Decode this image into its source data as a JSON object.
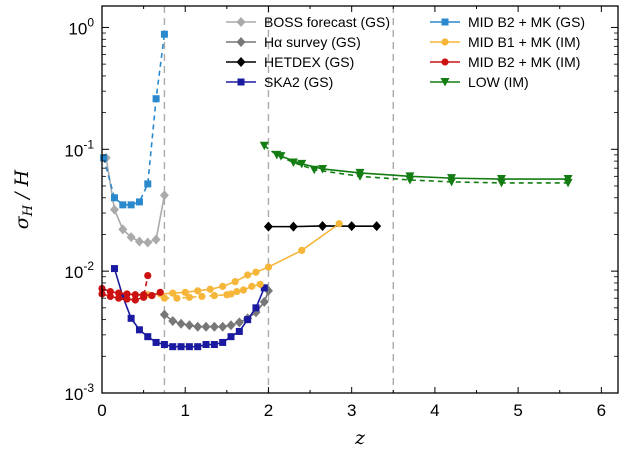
{
  "chart_data": {
    "type": "line",
    "title": "",
    "xlabel": "z",
    "ylabel": "σH / H",
    "xlim": [
      0,
      6.2
    ],
    "ylim": [
      0.001,
      1.5
    ],
    "yscale": "log",
    "x_ticks": [
      0,
      1,
      2,
      3,
      4,
      5,
      6
    ],
    "y_ticks": [
      {
        "value": 1,
        "label": "10^0"
      },
      {
        "value": 0.1,
        "label": "10^-1"
      },
      {
        "value": 0.01,
        "label": "10^-2"
      },
      {
        "value": 0.001,
        "label": "10^-3"
      }
    ],
    "vlines": [
      0.75,
      2.0,
      3.5
    ],
    "grid": false,
    "legend_placement": "top",
    "series": [
      {
        "name": "BOSS forecast (GS)",
        "color": "#aaaaaa",
        "marker": "diamond",
        "dash": "solid",
        "x": [
          0.05,
          0.15,
          0.25,
          0.35,
          0.45,
          0.55,
          0.65,
          0.75
        ],
        "y": [
          0.085,
          0.032,
          0.022,
          0.019,
          0.0175,
          0.0172,
          0.0182,
          0.042
        ]
      },
      {
        "name": "Hα survey (GS)",
        "color": "#777777",
        "marker": "diamond",
        "dash": "solid",
        "x": [
          0.75,
          0.85,
          0.95,
          1.05,
          1.15,
          1.25,
          1.35,
          1.45,
          1.55,
          1.65,
          1.75,
          1.85,
          1.95,
          2.0
        ],
        "y": [
          0.0044,
          0.0039,
          0.0037,
          0.0036,
          0.0035,
          0.0035,
          0.0035,
          0.0035,
          0.0036,
          0.0038,
          0.0041,
          0.0046,
          0.0056,
          0.0069
        ]
      },
      {
        "name": "HETDEX (GS)",
        "color": "#000000",
        "marker": "diamond",
        "dash": "solid",
        "x": [
          2.0,
          2.3,
          2.65,
          3.0,
          3.3
        ],
        "y": [
          0.0232,
          0.0232,
          0.0235,
          0.0234,
          0.0234
        ]
      },
      {
        "name": "SKA2 (GS)",
        "color": "#1a1aa0",
        "marker": "square",
        "dash": "solid",
        "x": [
          0.15,
          0.25,
          0.35,
          0.45,
          0.55,
          0.65,
          0.75,
          0.85,
          0.95,
          1.05,
          1.15,
          1.25,
          1.35,
          1.45,
          1.55,
          1.65,
          1.75,
          1.85,
          1.95
        ],
        "y": [
          0.0105,
          0.0062,
          0.0041,
          0.0033,
          0.0029,
          0.0026,
          0.0025,
          0.0024,
          0.0024,
          0.0024,
          0.0024,
          0.0025,
          0.0025,
          0.0026,
          0.0029,
          0.0032,
          0.004,
          0.005,
          0.0073
        ]
      },
      {
        "name": "MID B2 + MK (GS)",
        "color": "#2a88cc",
        "marker": "square",
        "dash": "dashed",
        "x": [
          0.02,
          0.15,
          0.25,
          0.35,
          0.45,
          0.55,
          0.65,
          0.75
        ],
        "y": [
          0.085,
          0.04,
          0.035,
          0.035,
          0.037,
          0.052,
          0.26,
          0.88
        ]
      },
      {
        "name": "MID B1 + MK (IM)",
        "color": "#f5b63a",
        "marker": "circle",
        "dash": "solid",
        "x": [
          0.4,
          0.55,
          0.7,
          0.85,
          1.0,
          1.15,
          1.3,
          1.45,
          1.6,
          1.75,
          1.85,
          2.0,
          2.4,
          2.85
        ],
        "y": [
          0.0064,
          0.0064,
          0.0065,
          0.0066,
          0.0067,
          0.0069,
          0.0071,
          0.0075,
          0.0082,
          0.0093,
          0.0098,
          0.0108,
          0.0148,
          0.0245
        ],
        "x2": [
          0.75,
          0.9,
          1.05,
          1.2,
          1.35,
          1.5,
          1.55,
          1.62,
          1.7,
          1.8,
          1.9
        ],
        "y2": [
          0.006,
          0.006,
          0.0061,
          0.0062,
          0.0063,
          0.0064,
          0.0065,
          0.0068,
          0.007,
          0.0075,
          0.0078
        ]
      },
      {
        "name": "MID B2 + MK (IM)",
        "color": "#cc1111",
        "marker": "circle",
        "dash": "solid",
        "x": [
          0.0,
          0.1,
          0.2,
          0.3,
          0.4,
          0.5,
          0.6,
          0.7
        ],
        "y": [
          0.0072,
          0.0068,
          0.0066,
          0.0065,
          0.0064,
          0.0064,
          0.0063,
          0.0067
        ],
        "x2": [
          0.0,
          0.1,
          0.2,
          0.3,
          0.4,
          0.5,
          0.55
        ],
        "y2": [
          0.0065,
          0.0062,
          0.006,
          0.0059,
          0.0058,
          0.0061,
          0.0092
        ]
      },
      {
        "name": "LOW (IM)",
        "color": "#137d13",
        "marker": "triangle-down",
        "dash": "solid",
        "x": [
          2.15,
          2.4,
          2.65,
          3.1,
          3.7,
          4.2,
          4.8,
          5.6
        ],
        "y": [
          0.088,
          0.076,
          0.069,
          0.064,
          0.06,
          0.058,
          0.057,
          0.057
        ],
        "x2": [
          1.95,
          2.1,
          2.3,
          2.55,
          3.1,
          3.7,
          4.2,
          4.8,
          5.6
        ],
        "y2": [
          0.107,
          0.09,
          0.078,
          0.068,
          0.06,
          0.056,
          0.054,
          0.053,
          0.053
        ]
      }
    ]
  }
}
